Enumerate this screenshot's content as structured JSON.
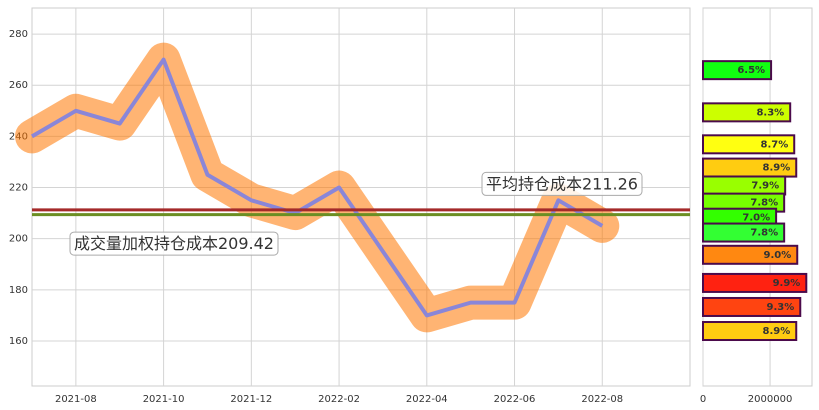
{
  "chart_data": [
    {
      "type": "line",
      "x": [
        "2021-07",
        "2021-08",
        "2021-09",
        "2021-10",
        "2021-11",
        "2021-12",
        "2022-01",
        "2022-02",
        "2022-03",
        "2022-04",
        "2022-05",
        "2022-06",
        "2022-07",
        "2022-08"
      ],
      "series": [
        {
          "color": "#8a86d8",
          "values": [
            240,
            250,
            245,
            270,
            225,
            215,
            210,
            220,
            195,
            170,
            175,
            175,
            215,
            205
          ]
        }
      ],
      "xlim": [
        "2021-07",
        "2022-10"
      ],
      "xticks": [
        "2021-08",
        "2021-10",
        "2021-12",
        "2022-02",
        "2022-04",
        "2022-06",
        "2022-08"
      ],
      "ylim": [
        142.4,
        290.2
      ],
      "yticks": [
        160,
        180,
        200,
        220,
        240,
        260,
        280
      ],
      "grid": true,
      "cost_lines": [
        {
          "label": "平均持仓成本211.26",
          "value": 211.26,
          "color": "#a52a2a"
        },
        {
          "label": "成交量加权持仓成本209.42",
          "value": 209.42,
          "color": "#6b8e23"
        }
      ]
    },
    {
      "type": "barh",
      "prices": [
        265.9,
        249.4,
        236.9,
        227.8,
        220.8,
        214.1,
        208.2,
        202.4,
        193.7,
        182.7,
        173.3,
        163.9
      ],
      "values": [
        2030000,
        2600000,
        2720000,
        2780000,
        2450000,
        2420000,
        2180000,
        2420000,
        2810000,
        3080000,
        2900000,
        2780000
      ],
      "percent_labels": [
        "6.5%",
        "8.3%",
        "8.7%",
        "8.9%",
        "7.9%",
        "7.8%",
        "7.0%",
        "7.8%",
        "9.0%",
        "9.9%",
        "9.3%",
        "8.9%"
      ],
      "colors": [
        "#11ff11",
        "#ccff00",
        "#ffff11",
        "#ffcc11",
        "#99ff00",
        "#77ff00",
        "#33ff00",
        "#33ff33",
        "#ff8811",
        "#ff2211",
        "#ff4411",
        "#ffcc11"
      ],
      "xlim": [
        0,
        3250000
      ],
      "xticks": [
        0,
        2000000
      ],
      "ylim": [
        142.4,
        290.2
      ],
      "grid": true
    }
  ]
}
